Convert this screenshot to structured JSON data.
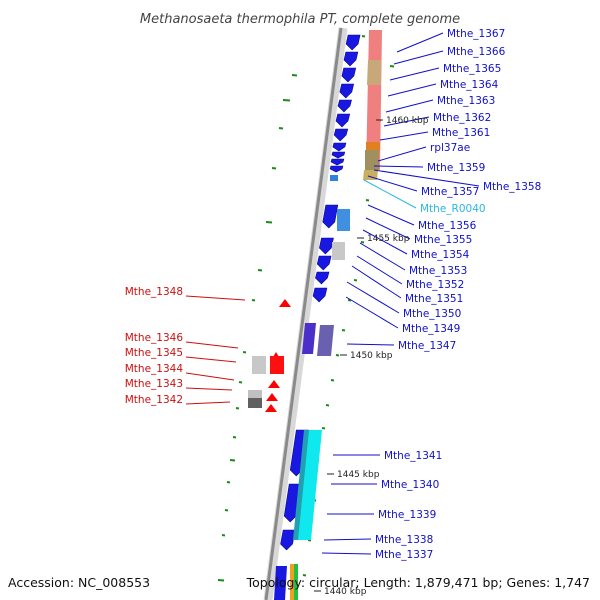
{
  "title": "Methanosaeta thermophila PT, complete genome",
  "footer": {
    "accession": "Accession: NC_008553",
    "summary": "Topology: circular; Length: 1,879,471 bp; Genes: 1,747"
  },
  "colors": {
    "forward_label": "#1010c8",
    "reverse_label": "#cc1010",
    "rna_label": "#2ab8e0",
    "cds": "#1818e0",
    "rna_gene": "#ff0000",
    "gc_band": "#f08080",
    "skew_tick": "#1a8a1a",
    "backbone": "#8a8a8a"
  },
  "scale_ticks": [
    "1460 kbp",
    "1455 kbp",
    "1450 kbp",
    "1445 kbp",
    "1440 kbp"
  ],
  "forward_labels": [
    {
      "text": "Mthe_1367",
      "type": "cds"
    },
    {
      "text": "Mthe_1366",
      "type": "cds"
    },
    {
      "text": "Mthe_1365",
      "type": "cds"
    },
    {
      "text": "Mthe_1364",
      "type": "cds"
    },
    {
      "text": "Mthe_1363",
      "type": "cds"
    },
    {
      "text": "Mthe_1362",
      "type": "cds"
    },
    {
      "text": "Mthe_1361",
      "type": "cds"
    },
    {
      "text": "rpl37ae",
      "type": "cds"
    },
    {
      "text": "Mthe_1359",
      "type": "cds"
    },
    {
      "text": "Mthe_1358",
      "type": "cds"
    },
    {
      "text": "Mthe_1357",
      "type": "cds"
    },
    {
      "text": "Mthe_R0040",
      "type": "rna"
    },
    {
      "text": "Mthe_1356",
      "type": "cds"
    },
    {
      "text": "Mthe_1355",
      "type": "cds"
    },
    {
      "text": "Mthe_1354",
      "type": "cds"
    },
    {
      "text": "Mthe_1353",
      "type": "cds"
    },
    {
      "text": "Mthe_1352",
      "type": "cds"
    },
    {
      "text": "Mthe_1351",
      "type": "cds"
    },
    {
      "text": "Mthe_1350",
      "type": "cds"
    },
    {
      "text": "Mthe_1349",
      "type": "cds"
    },
    {
      "text": "Mthe_1347",
      "type": "cds"
    },
    {
      "text": "Mthe_1341",
      "type": "cds"
    },
    {
      "text": "Mthe_1340",
      "type": "cds"
    },
    {
      "text": "Mthe_1339",
      "type": "cds"
    },
    {
      "text": "Mthe_1338",
      "type": "cds"
    },
    {
      "text": "Mthe_1337",
      "type": "cds"
    }
  ],
  "reverse_labels": [
    {
      "text": "Mthe_1348",
      "type": "rna"
    },
    {
      "text": "Mthe_1346",
      "type": "rna"
    },
    {
      "text": "Mthe_1345",
      "type": "rna"
    },
    {
      "text": "Mthe_1344",
      "type": "rna"
    },
    {
      "text": "Mthe_1343",
      "type": "rna"
    },
    {
      "text": "Mthe_1342",
      "type": "rna"
    }
  ]
}
